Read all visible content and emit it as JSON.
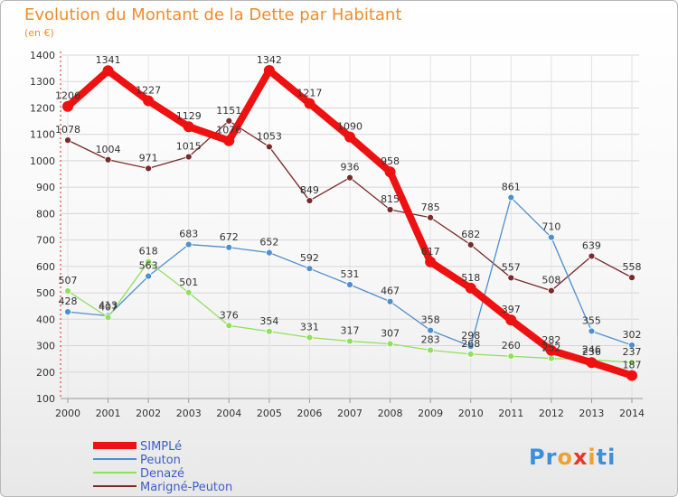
{
  "title": "Evolution du Montant de la Dette par Habitant",
  "subtitle": "(en €)",
  "brand": {
    "letters": [
      "P",
      "r",
      "o",
      "x",
      "i",
      "t",
      "i"
    ],
    "colors": [
      "#3d8fd9",
      "#3d8fd9",
      "#f0a030",
      "#e8372a",
      "#f0a030",
      "#3d8fd9",
      "#3d8fd9"
    ]
  },
  "chart_data": {
    "type": "line",
    "title": "Evolution du Montant de la Dette par Habitant",
    "ylabel": "(en €)",
    "xlabel": "",
    "x": [
      "2000",
      "2001",
      "2002",
      "2003",
      "2004",
      "2005",
      "2006",
      "2007",
      "2008",
      "2009",
      "2010",
      "2011",
      "2012",
      "2013",
      "2014"
    ],
    "ylim": [
      100,
      1400
    ],
    "yticks": [
      100,
      200,
      300,
      400,
      500,
      600,
      700,
      800,
      900,
      1000,
      1100,
      1200,
      1300,
      1400
    ],
    "grid": true,
    "legend_position": "bottom-left",
    "series": [
      {
        "name": "SIMPLé",
        "color": "#ee1111",
        "values": [
          1206,
          1341,
          1227,
          1129,
          1076,
          1342,
          1217,
          1090,
          958,
          617,
          518,
          397,
          282,
          236,
          187
        ]
      },
      {
        "name": "Peuton",
        "color": "#4e8fcf",
        "values": [
          428,
          413,
          563,
          683,
          672,
          652,
          592,
          531,
          467,
          358,
          298,
          861,
          710,
          355,
          302
        ]
      },
      {
        "name": "Denazé",
        "color": "#90e060",
        "values": [
          507,
          407,
          618,
          501,
          376,
          354,
          331,
          317,
          307,
          283,
          268,
          260,
          252,
          246,
          237
        ]
      },
      {
        "name": "Marigné-Peuton",
        "color": "#7a2a2a",
        "values": [
          1078,
          1004,
          971,
          1015,
          1151,
          1053,
          849,
          936,
          815,
          785,
          682,
          557,
          508,
          639,
          558
        ]
      }
    ]
  }
}
